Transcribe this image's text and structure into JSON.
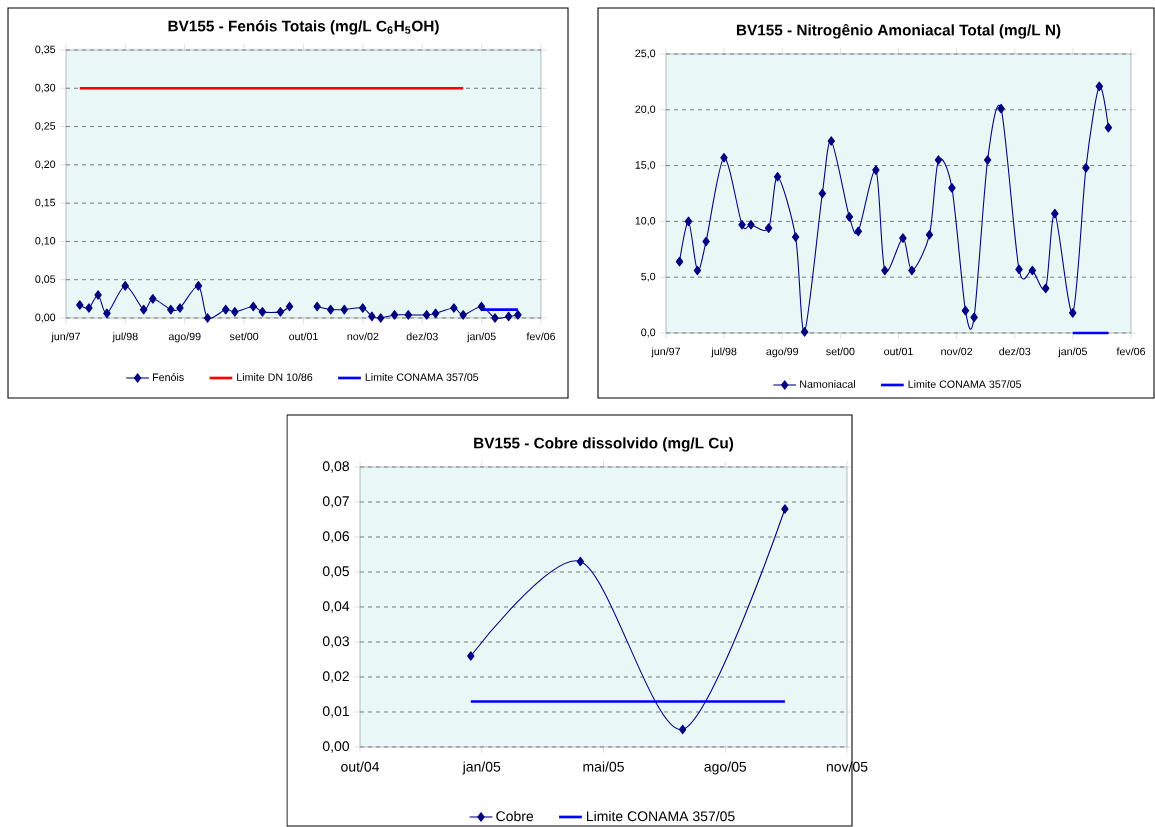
{
  "chart_data": [
    {
      "type": "line",
      "title": "BV155 - Fenóis Totais (mg/L C$_{6}$H$_{5}$OH)",
      "x": [
        "1997-09",
        "1997-11",
        "1998-01",
        "1998-03",
        "1998-07",
        "1998-11",
        "1999-01",
        "1999-05",
        "1999-07",
        "1999-11",
        "2000-01",
        "2000-05",
        "2000-07",
        "2000-11",
        "2001-01",
        "2001-05",
        "2001-07",
        "2001-10",
        "2002-01",
        "2002-04",
        "2002-07",
        "2002-11",
        "2003-01",
        "2003-03",
        "2003-06",
        "2003-09",
        "2004-01",
        "2004-03",
        "2004-07",
        "2004-09",
        "2005-01",
        "2005-04",
        "2005-07",
        "2005-09"
      ],
      "series": [
        {
          "name": "Fenóis",
          "color": "#000080",
          "marker": "diamond",
          "values": [
            0.017,
            0.013,
            0.03,
            0.006,
            0.042,
            0.011,
            0.025,
            0.011,
            0.013,
            0.042,
            0.0,
            0.011,
            0.008,
            0.015,
            0.008,
            0.008,
            0.015,
            null,
            0.015,
            0.011,
            0.011,
            0.013,
            0.002,
            0.0,
            0.004,
            0.004,
            0.004,
            0.006,
            0.013,
            0.004,
            0.015,
            0.0,
            0.002,
            0.004
          ]
        },
        {
          "name": "Limite DN 10/86",
          "color": "#ff0000",
          "marker": "none",
          "x": [
            "1997-09",
            "2004-09"
          ],
          "values": [
            0.3,
            0.3
          ]
        },
        {
          "name": "Limite CONAMA 357/05",
          "color": "#0000ff",
          "marker": "none",
          "x": [
            "2005-01",
            "2005-09"
          ],
          "values": [
            0.011,
            0.011
          ]
        }
      ],
      "xlim": [
        "1997-06-01",
        "2006-02-02"
      ],
      "xticks": [
        {
          "value": "1997-06-01",
          "label": "jun/97"
        },
        {
          "value": "1998-07-02",
          "label": "jul/98"
        },
        {
          "value": "1999-08-02",
          "label": "ago/99"
        },
        {
          "value": "2000-09-01",
          "label": "set/00"
        },
        {
          "value": "2001-10-02",
          "label": "out/01"
        },
        {
          "value": "2002-11-02",
          "label": "nov/02"
        },
        {
          "value": "2003-12-03",
          "label": "dez/03"
        },
        {
          "value": "2005-01-02",
          "label": "jan/05"
        },
        {
          "value": "2006-02-02",
          "label": "fev/06"
        }
      ],
      "ylim": [
        0,
        0.35
      ],
      "yticks": [
        {
          "value": 0,
          "label": "0,00"
        },
        {
          "value": 0.05,
          "label": "0,05"
        },
        {
          "value": 0.1,
          "label": "0,10"
        },
        {
          "value": 0.15,
          "label": "0,15"
        },
        {
          "value": 0.2,
          "label": "0,20"
        },
        {
          "value": 0.25,
          "label": "0,25"
        },
        {
          "value": 0.3,
          "label": "0,30"
        },
        {
          "value": 0.35,
          "label": "0,35"
        }
      ],
      "grid": "y",
      "legend": "bottom"
    },
    {
      "type": "line",
      "title": "BV155 - Nitrogênio Amoniacal Total (mg/L N)",
      "x": [
        "1997-09",
        "1997-11",
        "1998-01",
        "1998-03",
        "1998-07",
        "1998-11",
        "1999-01",
        "1999-05",
        "1999-07",
        "1999-11",
        "2000-01",
        "2000-05",
        "2000-07",
        "2000-11",
        "2001-01",
        "2001-05",
        "2001-07",
        "2001-11",
        "2002-01",
        "2002-05",
        "2002-07",
        "2002-10",
        "2003-01",
        "2003-03",
        "2003-06",
        "2003-09",
        "2004-01",
        "2004-04",
        "2004-07",
        "2004-09",
        "2005-01",
        "2005-04",
        "2005-07",
        "2005-09"
      ],
      "series": [
        {
          "name": "Namoniacal",
          "color": "#000080",
          "marker": "diamond",
          "values": [
            6.4,
            10.0,
            5.6,
            8.2,
            15.7,
            9.7,
            9.7,
            9.4,
            14.0,
            8.6,
            0.1,
            12.5,
            17.2,
            10.4,
            9.1,
            14.6,
            5.6,
            8.5,
            5.6,
            8.8,
            15.5,
            13.0,
            2.0,
            1.4,
            15.5,
            20.1,
            5.7,
            5.6,
            4.0,
            10.7,
            1.8,
            14.8,
            22.1,
            18.4
          ]
        },
        {
          "name": "Limite CONAMA 357/05",
          "color": "#0000ff",
          "marker": "none",
          "x": [
            "2005-01",
            "2005-09"
          ],
          "values": [
            0.0,
            0.0
          ]
        }
      ],
      "xlim": [
        "1997-06-01",
        "2006-02-02"
      ],
      "xticks": [
        {
          "value": "1997-06-01",
          "label": "jun/97"
        },
        {
          "value": "1998-07-02",
          "label": "jul/98"
        },
        {
          "value": "1999-08-02",
          "label": "ago/99"
        },
        {
          "value": "2000-09-01",
          "label": "set/00"
        },
        {
          "value": "2001-10-02",
          "label": "out/01"
        },
        {
          "value": "2002-11-02",
          "label": "nov/02"
        },
        {
          "value": "2003-12-03",
          "label": "dez/03"
        },
        {
          "value": "2005-01-02",
          "label": "jan/05"
        },
        {
          "value": "2006-02-02",
          "label": "fev/06"
        }
      ],
      "ylim": [
        0,
        25
      ],
      "yticks": [
        {
          "value": 0,
          "label": "0,0"
        },
        {
          "value": 5,
          "label": "5,0"
        },
        {
          "value": 10,
          "label": "10,0"
        },
        {
          "value": 15,
          "label": "15,0"
        },
        {
          "value": 20,
          "label": "20,0"
        },
        {
          "value": 25,
          "label": "25,0"
        }
      ],
      "grid": "y",
      "legend": "bottom"
    },
    {
      "type": "line",
      "title": "BV155 - Cobre dissolvido (mg/L Cu)",
      "x": [
        "2005-01-19",
        "2005-04-19",
        "2005-07-12",
        "2005-10-04"
      ],
      "series": [
        {
          "name": "Cobre",
          "color": "#000080",
          "marker": "diamond",
          "values": [
            0.026,
            0.053,
            0.005,
            0.068
          ]
        },
        {
          "name": "Limite CONAMA 357/05",
          "color": "#0000ff",
          "marker": "none",
          "x": [
            "2005-01-19",
            "2005-10-04"
          ],
          "values": [
            0.013,
            0.013
          ]
        }
      ],
      "xlim": [
        "2004-10-20",
        "2005-11-24"
      ],
      "xticks": [
        {
          "value": "2004-10-20",
          "label": "out/04"
        },
        {
          "value": "2005-01-28",
          "label": "jan/05"
        },
        {
          "value": "2005-05-08",
          "label": "mai/05"
        },
        {
          "value": "2005-08-16",
          "label": "ago/05"
        },
        {
          "value": "2005-11-24",
          "label": "nov/05"
        }
      ],
      "ylim": [
        0,
        0.08
      ],
      "yticks": [
        {
          "value": 0,
          "label": "0,00"
        },
        {
          "value": 0.01,
          "label": "0,01"
        },
        {
          "value": 0.02,
          "label": "0,02"
        },
        {
          "value": 0.03,
          "label": "0,03"
        },
        {
          "value": 0.04,
          "label": "0,04"
        },
        {
          "value": 0.05,
          "label": "0,05"
        },
        {
          "value": 0.06,
          "label": "0,06"
        },
        {
          "value": 0.07,
          "label": "0,07"
        },
        {
          "value": 0.08,
          "label": "0,08"
        }
      ],
      "grid": "y",
      "legend": "bottom"
    }
  ]
}
